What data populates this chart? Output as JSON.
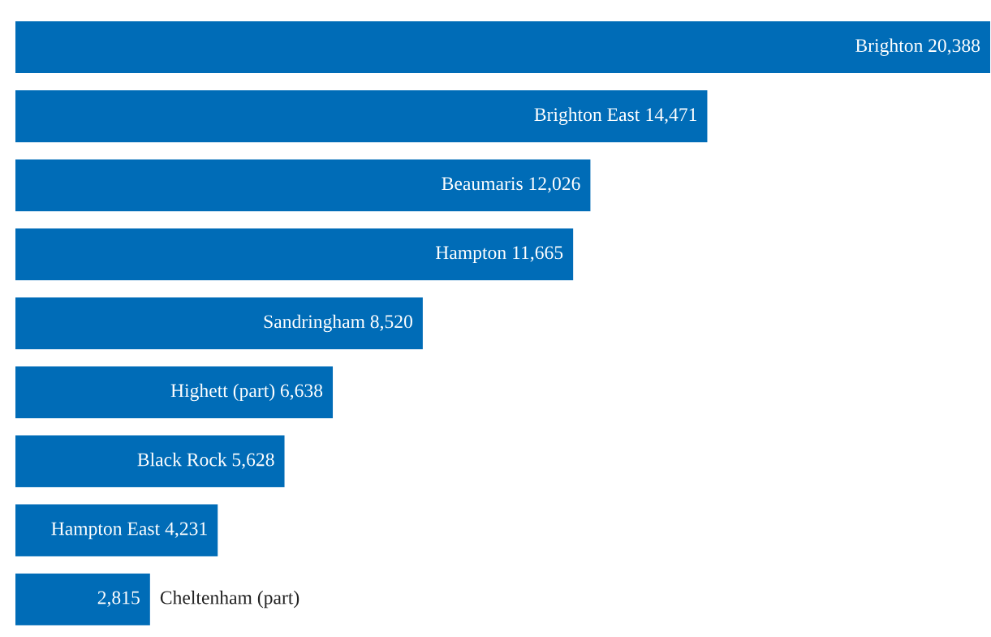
{
  "chart_data": {
    "type": "bar",
    "orientation": "horizontal",
    "categories": [
      "Brighton",
      "Brighton East",
      "Beaumaris",
      "Hampton",
      "Sandringham",
      "Highett (part)",
      "Black Rock",
      "Hampton East",
      "Cheltenham (part)"
    ],
    "values": [
      20388,
      14471,
      12026,
      11665,
      8520,
      6638,
      5628,
      4231,
      2815
    ],
    "value_labels": [
      "20,388",
      "14,471",
      "12,026",
      "11,665",
      "8,520",
      "6,638",
      "5,628",
      "4,231",
      "2,815"
    ],
    "color": "#006cb7"
  }
}
